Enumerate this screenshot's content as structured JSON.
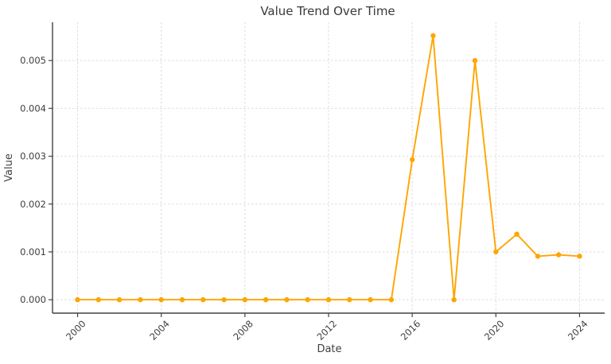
{
  "chart_data": {
    "type": "line",
    "title": "Value Trend Over Time",
    "xlabel": "Date",
    "ylabel": "Value",
    "grid": true,
    "legend": "none",
    "marker": "circle",
    "background": "#ffffff",
    "text_color": "#3f3f3f",
    "grid_color": "#dcdcdc",
    "spine_color": "#424242",
    "xlim": [
      1998.8,
      2025.2
    ],
    "ylim": [
      -0.00028,
      0.0058
    ],
    "x_ticks": [
      2000,
      2004,
      2008,
      2012,
      2016,
      2020,
      2024
    ],
    "x_tick_labels": [
      "2000",
      "2004",
      "2008",
      "2012",
      "2016",
      "2020",
      "2024"
    ],
    "y_ticks": [
      0.0,
      0.001,
      0.002,
      0.003,
      0.004,
      0.005
    ],
    "y_tick_labels": [
      "0.000",
      "0.001",
      "0.002",
      "0.003",
      "0.004",
      "0.005"
    ],
    "series": [
      {
        "name": "Value",
        "color": "#FFA500",
        "x": [
          2000,
          2001,
          2002,
          2003,
          2004,
          2005,
          2006,
          2007,
          2008,
          2009,
          2010,
          2011,
          2012,
          2013,
          2014,
          2015,
          2016,
          2017,
          2018,
          2019,
          2020,
          2021,
          2022,
          2023,
          2024
        ],
        "values": [
          0.0,
          0.0,
          0.0,
          0.0,
          0.0,
          0.0,
          0.0,
          0.0,
          0.0,
          0.0,
          0.0,
          0.0,
          0.0,
          0.0,
          0.0,
          0.0,
          0.00293,
          0.00552,
          0.0,
          0.005,
          0.001,
          0.00137,
          0.00091,
          0.00094,
          0.00091
        ]
      }
    ]
  }
}
